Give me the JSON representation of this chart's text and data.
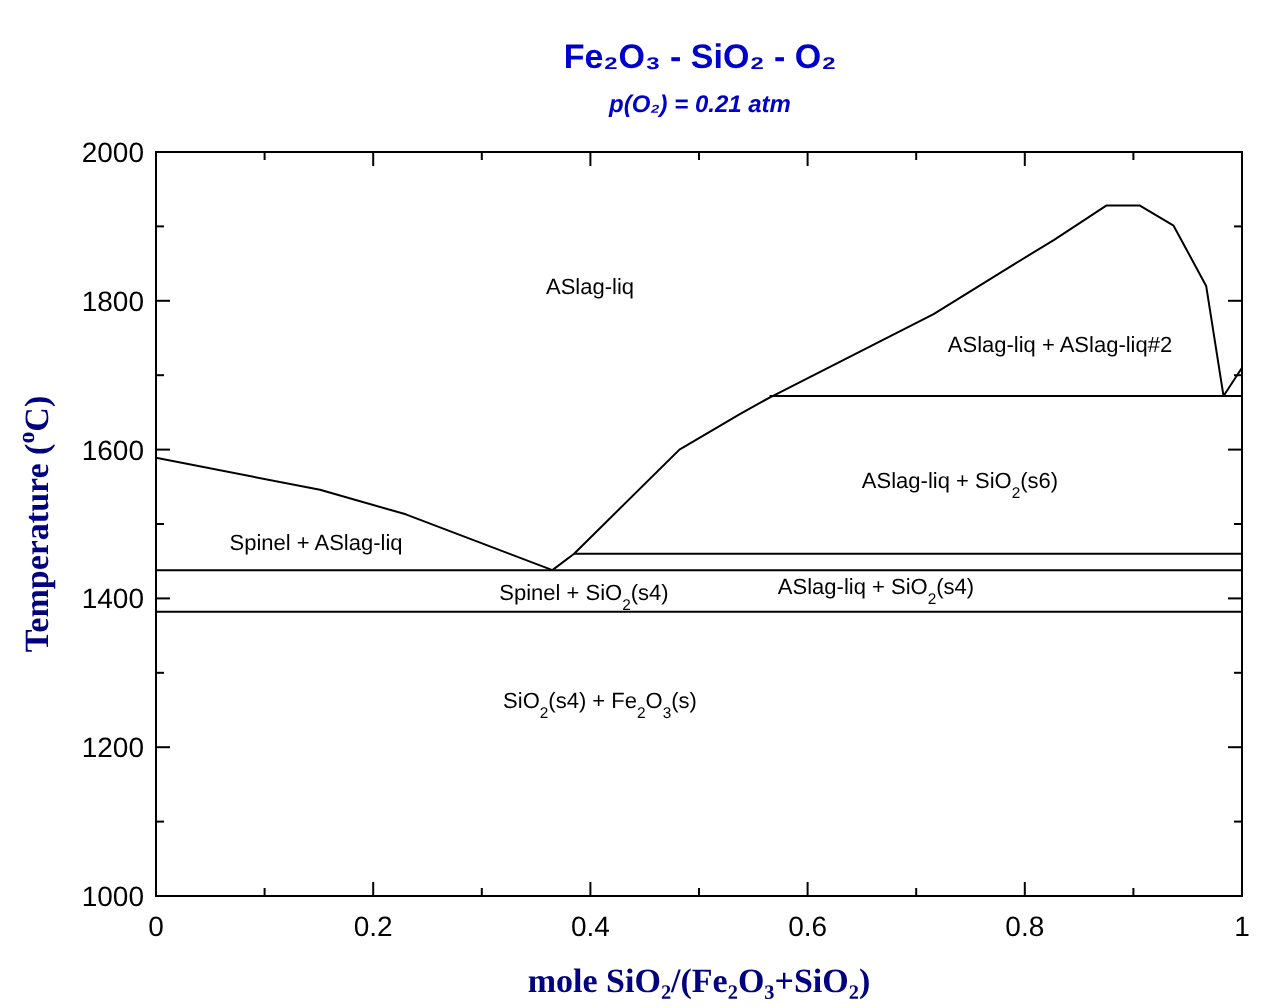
{
  "chart_data": {
    "type": "line",
    "title": "Fe₂O₃ - SiO₂ - O₂",
    "subtitle": "p(O₂) = 0.21 atm",
    "xlabel": "mole SiO₂/(Fe₂O₃+SiO₂)",
    "ylabel": "Temperature ($^{o}$C)",
    "xlim": [
      0,
      1
    ],
    "ylim": [
      1000,
      2000
    ],
    "xticks": [
      0,
      {
        "value": 0.1,
        "label": null
      },
      0.2,
      {
        "value": 0.3,
        "label": null
      },
      0.4,
      {
        "value": 0.5,
        "label": null
      },
      0.6,
      {
        "value": 0.7,
        "label": null
      },
      0.8,
      {
        "value": 0.9,
        "label": null
      },
      1
    ],
    "yticks": [
      1000,
      {
        "value": 1100,
        "label": null
      },
      1200,
      {
        "value": 1300,
        "label": null
      },
      1400,
      {
        "value": 1500,
        "label": null
      },
      1600,
      {
        "value": 1700,
        "label": null
      },
      1800,
      {
        "value": 1900,
        "label": null
      },
      2000
    ],
    "grid": false,
    "marker": "none",
    "line_style": "solid",
    "series": [
      {
        "color": "#000000",
        "x": [
          0,
          0.151,
          0.23,
          0.365
        ],
        "values": [
          1589,
          1546,
          1513,
          1438
        ]
      },
      {
        "color": "#000000",
        "x": [
          0.365,
          0.385,
          0.482,
          0.538,
          0.565,
          0.716,
          0.79,
          0.827,
          0.875,
          0.906,
          0.937,
          0.967,
          0.983
        ],
        "values": [
          1438,
          1460,
          1600,
          1648,
          1670,
          1782,
          1849,
          1882,
          1928,
          1928,
          1901,
          1820,
          1672
        ]
      },
      {
        "color": "#000000",
        "x": [
          0.983,
          1
        ],
        "values": [
          1672,
          1710
        ]
      },
      {
        "color": "#000000",
        "x": [
          0.565,
          1
        ],
        "values": [
          1672,
          1672
        ]
      },
      {
        "color": "#000000",
        "x": [
          0.385,
          1
        ],
        "values": [
          1460,
          1460
        ]
      },
      {
        "color": "#000000",
        "x": [
          0,
          1
        ],
        "values": [
          1438,
          1438
        ]
      },
      {
        "color": "#000000",
        "x": [
          0,
          1
        ],
        "values": [
          1382,
          1382
        ]
      }
    ],
    "annotations": [
      "ASlag-liq",
      "ASlag-liq + ASlag-liq#2",
      "Spinel + ASlag-liq",
      "ASlag-liq + SiO$_{2}$(s6)",
      "ASlag-liq + SiO$_{2}$(s4)",
      "Spinel + SiO$_{2}$(s4)",
      "SiO$_{2}$(s4) + Fe$_{2}$O$_{3}$(s)"
    ]
  }
}
